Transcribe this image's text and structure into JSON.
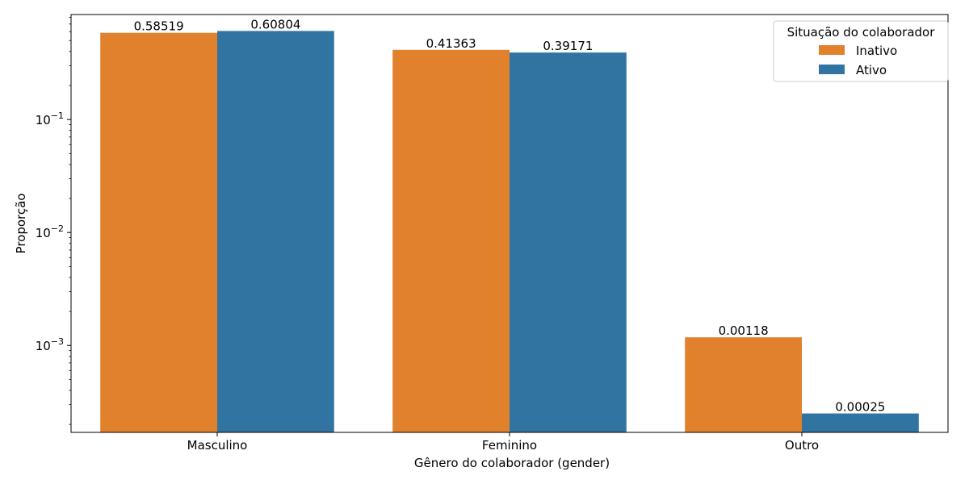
{
  "chart_data": {
    "type": "bar",
    "yscale": "log",
    "categories": [
      "Masculino",
      "Feminino",
      "Outro"
    ],
    "series": [
      {
        "name": "Inativo",
        "color": "#e1812c",
        "values": [
          0.58519,
          0.41363,
          0.00118
        ],
        "labels": [
          "0.58519",
          "0.41363",
          "0.00118"
        ]
      },
      {
        "name": "Ativo",
        "color": "#3274a1",
        "values": [
          0.60804,
          0.39171,
          0.00025
        ],
        "labels": [
          "0.60804",
          "0.39171",
          "0.00025"
        ]
      }
    ],
    "xlabel": "Gênero do colaborador (gender)",
    "ylabel": "Proporção",
    "ylim": [
      0.00017,
      0.85
    ],
    "yticks": [
      {
        "value": 0.1,
        "mantissa": "10",
        "exponent": "−1"
      },
      {
        "value": 0.01,
        "mantissa": "10",
        "exponent": "−2"
      },
      {
        "value": 0.001,
        "mantissa": "10",
        "exponent": "−3"
      }
    ],
    "legend": {
      "title": "Situação do colaborador",
      "placement": "top-right"
    },
    "grid": false
  }
}
